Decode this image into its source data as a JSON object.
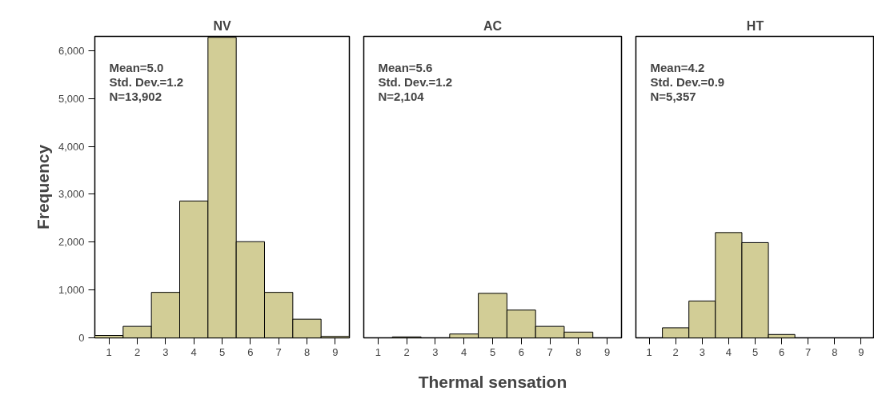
{
  "chart_data": [
    {
      "type": "histogram",
      "title": "NV",
      "ylabel": "Frequency",
      "bins": [
        0.5,
        1.5,
        2.5,
        3.5,
        4.5,
        5.5,
        6.5,
        7.5,
        8.5,
        9.5
      ],
      "values": [
        50,
        240,
        950,
        2860,
        6280,
        2010,
        950,
        390,
        30
      ],
      "color": "#d2cd96",
      "xlim": [
        0.5,
        9.5
      ],
      "ylim": [
        0,
        6300
      ],
      "xticks": [
        1,
        2,
        3,
        4,
        5,
        6,
        7,
        8,
        9
      ],
      "yticks": [
        0,
        {
          "value": 1000,
          "label": "1,000"
        },
        {
          "value": 2000,
          "label": "2,000"
        },
        {
          "value": 3000,
          "label": "3,000"
        },
        {
          "value": 4000,
          "label": "4,000"
        },
        {
          "value": 5000,
          "label": "5,000"
        },
        {
          "value": 6000,
          "label": "6,000"
        }
      ],
      "grid": false,
      "annotations": [
        "Mean=5.0",
        "Std. Dev.=1.2",
        "N=13,902"
      ]
    },
    {
      "type": "histogram",
      "title": "AC",
      "xlabel": "Thermal sensation",
      "bins": [
        0.5,
        1.5,
        2.5,
        3.5,
        4.5,
        5.5,
        6.5,
        7.5,
        8.5,
        9.5
      ],
      "values": [
        null,
        20,
        null,
        80,
        930,
        580,
        240,
        120,
        null
      ],
      "color": "#d2cd96",
      "xlim": [
        0.5,
        9.5
      ],
      "ylim": [
        0,
        6300
      ],
      "xticks": [
        1,
        2,
        3,
        4,
        5,
        6,
        7,
        8,
        9
      ],
      "tick_labels": "x",
      "grid": false,
      "annotations": [
        "Mean=5.6",
        "Std. Dev.=1.2",
        "N=2,104"
      ]
    },
    {
      "type": "histogram",
      "title": "HT",
      "bins": [
        0.5,
        1.5,
        2.5,
        3.5,
        4.5,
        5.5,
        6.5,
        7.5,
        8.5,
        9.5
      ],
      "values": [
        null,
        210,
        770,
        2200,
        1990,
        70,
        null,
        null,
        null
      ],
      "color": "#d2cd96",
      "xlim": [
        0.5,
        9.5
      ],
      "ylim": [
        0,
        6300
      ],
      "xticks": [
        1,
        2,
        3,
        4,
        5,
        6,
        7,
        8,
        9
      ],
      "tick_labels": "x",
      "grid": false,
      "annotations": [
        "Mean=4.2",
        "Std. Dev.=0.9",
        "N=5,357"
      ]
    }
  ]
}
